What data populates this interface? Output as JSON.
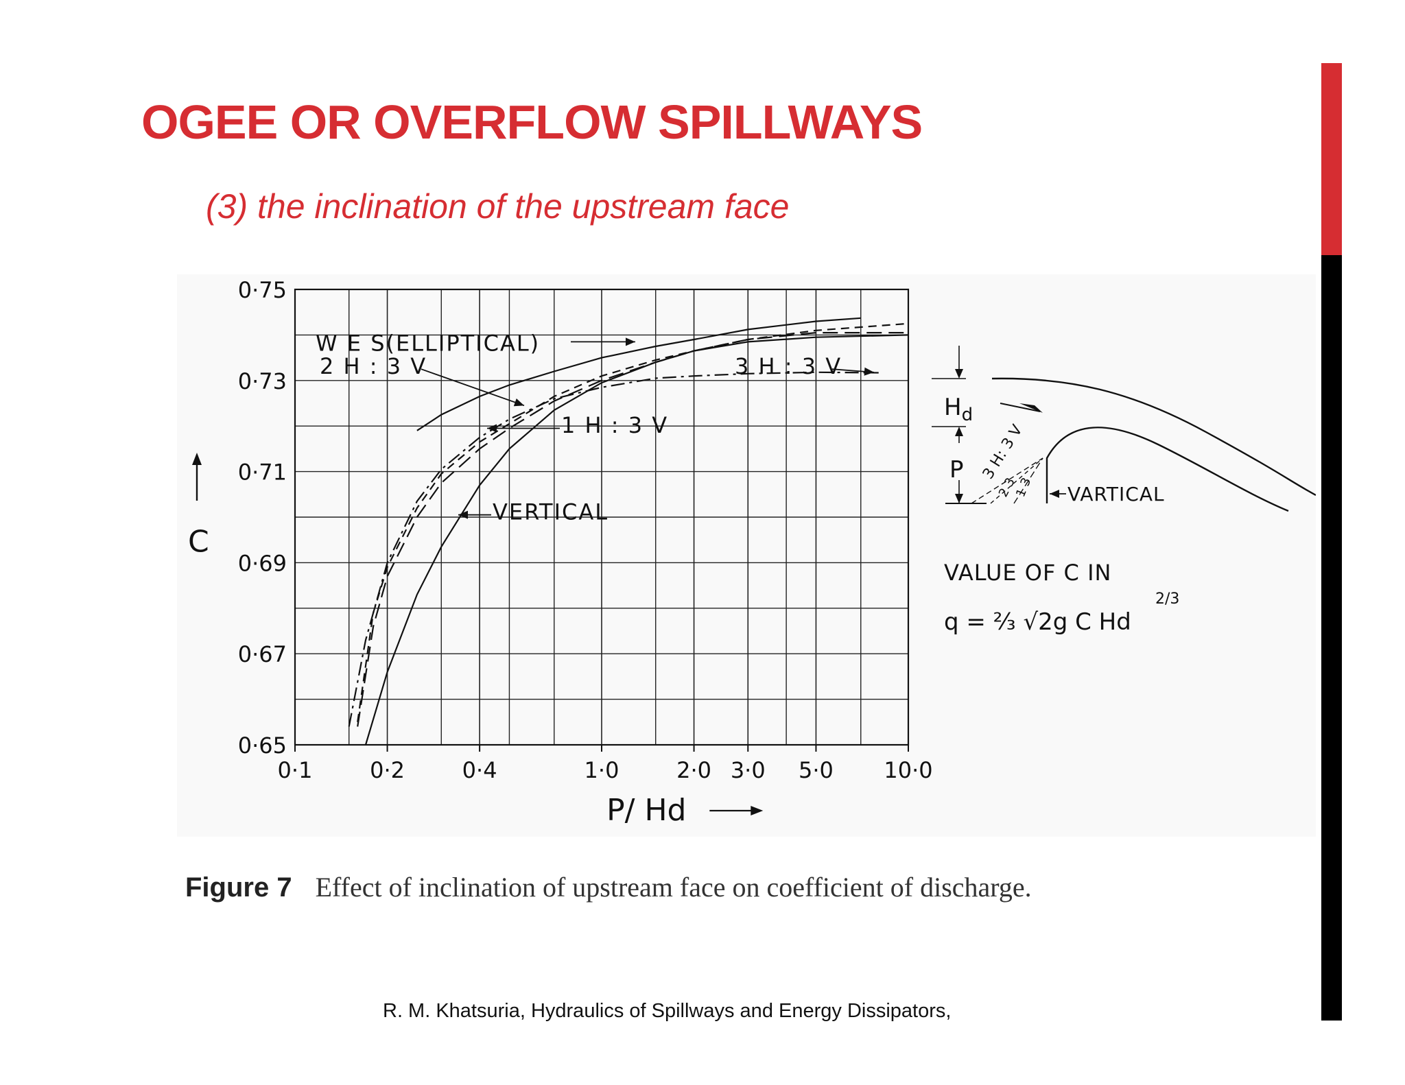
{
  "slide": {
    "title": "OGEE OR OVERFLOW SPILLWAYS",
    "subtitle": "(3) the inclination of the upstream face",
    "accent_color": "#d62d32",
    "bar_color": "#000000",
    "caption_label": "Figure 7",
    "caption_text": "Effect of inclination of upstream face on coefficient of discharge.",
    "citation": "R. M. Khatsuria, Hydraulics of Spillways and Energy Dissipators,"
  },
  "chart_data": {
    "type": "line",
    "xscale": "log",
    "xlabel": "P/ Hd",
    "ylabel": "C",
    "xlim": [
      0.1,
      10.0
    ],
    "ylim": [
      0.65,
      0.75
    ],
    "grid": true,
    "x_ticks": [
      {
        "v": 0.1,
        "label": "0·1"
      },
      {
        "v": 0.2,
        "label": "0·2"
      },
      {
        "v": 0.4,
        "label": "0·4"
      },
      {
        "v": 1.0,
        "label": "1·0"
      },
      {
        "v": 2.0,
        "label": "2·0"
      },
      {
        "v": 3.0,
        "label": "3·0"
      },
      {
        "v": 5.0,
        "label": "5·0"
      },
      {
        "v": 10.0,
        "label": "10·0"
      }
    ],
    "y_ticks": [
      {
        "v": 0.75,
        "label": "0·75"
      },
      {
        "v": 0.73,
        "label": "0·73"
      },
      {
        "v": 0.71,
        "label": "0·71"
      },
      {
        "v": 0.69,
        "label": "0·69"
      },
      {
        "v": 0.67,
        "label": "0·67"
      },
      {
        "v": 0.65,
        "label": "0·65"
      }
    ],
    "series": [
      {
        "name": "W E S(ELLIPTICAL)",
        "style": "solid",
        "x": [
          0.25,
          0.3,
          0.4,
          0.5,
          0.7,
          1.0,
          1.5,
          2.0,
          3.0,
          5.0,
          7.0
        ],
        "y": [
          0.719,
          0.7225,
          0.7265,
          0.729,
          0.732,
          0.735,
          0.7375,
          0.739,
          0.7412,
          0.743,
          0.7437
        ]
      },
      {
        "name": "2 H : 3 V",
        "style": "dashed",
        "x": [
          0.16,
          0.18,
          0.2,
          0.25,
          0.3,
          0.4,
          0.5,
          0.7,
          1.0,
          1.5,
          2.0,
          3.0,
          5.0,
          10.0
        ],
        "y": [
          0.655,
          0.679,
          0.689,
          0.702,
          0.7095,
          0.7165,
          0.7205,
          0.7265,
          0.731,
          0.7345,
          0.7365,
          0.739,
          0.741,
          0.7425
        ]
      },
      {
        "name": "1 H : 3 V",
        "style": "long-dash",
        "x": [
          0.16,
          0.18,
          0.2,
          0.25,
          0.3,
          0.4,
          0.5,
          0.7,
          1.0,
          1.5,
          2.0,
          3.0,
          5.0,
          10.0
        ],
        "y": [
          0.654,
          0.676,
          0.687,
          0.7,
          0.7075,
          0.715,
          0.7195,
          0.7255,
          0.73,
          0.734,
          0.7365,
          0.739,
          0.7405,
          0.7405
        ]
      },
      {
        "name": "3 H : 3 V",
        "style": "dash-dot",
        "x": [
          0.15,
          0.17,
          0.2,
          0.25,
          0.3,
          0.4,
          0.5,
          0.7,
          1.0,
          1.5,
          2.0,
          3.0,
          5.0,
          8.0
        ],
        "y": [
          0.654,
          0.673,
          0.69,
          0.7035,
          0.7105,
          0.7175,
          0.7215,
          0.726,
          0.7285,
          0.7305,
          0.731,
          0.7315,
          0.7318,
          0.7317
        ]
      },
      {
        "name": "VERTICAL",
        "style": "solid",
        "x": [
          0.17,
          0.2,
          0.25,
          0.3,
          0.4,
          0.5,
          0.7,
          1.0,
          1.5,
          2.0,
          3.0,
          5.0,
          10.0
        ],
        "y": [
          0.65,
          0.666,
          0.683,
          0.6935,
          0.707,
          0.715,
          0.7235,
          0.7295,
          0.734,
          0.7365,
          0.7385,
          0.7395,
          0.74
        ]
      }
    ],
    "annotations": [
      {
        "id": "wes",
        "text": "W E S(ELLIPTICAL)"
      },
      {
        "id": "h2v3",
        "text": "2 H : 3 V"
      },
      {
        "id": "h1v3",
        "text": "1 H : 3 V"
      },
      {
        "id": "h3v3",
        "text": "3 H : 3 V"
      },
      {
        "id": "vertical",
        "text": "VERTICAL"
      }
    ],
    "inset": {
      "hd_label": "H",
      "hd_sub": "d",
      "p_label": "P",
      "slope_3h3v": "3 H: 3 V",
      "slope_2h3v": "2 3",
      "slope_1h3v": "1 3",
      "vertical_label": "VARTICAL",
      "formula_title": "VALUE  OF  C  IN",
      "formula": "q = ⅔ √2g  C  Hd",
      "formula_exp": "2/3"
    }
  }
}
